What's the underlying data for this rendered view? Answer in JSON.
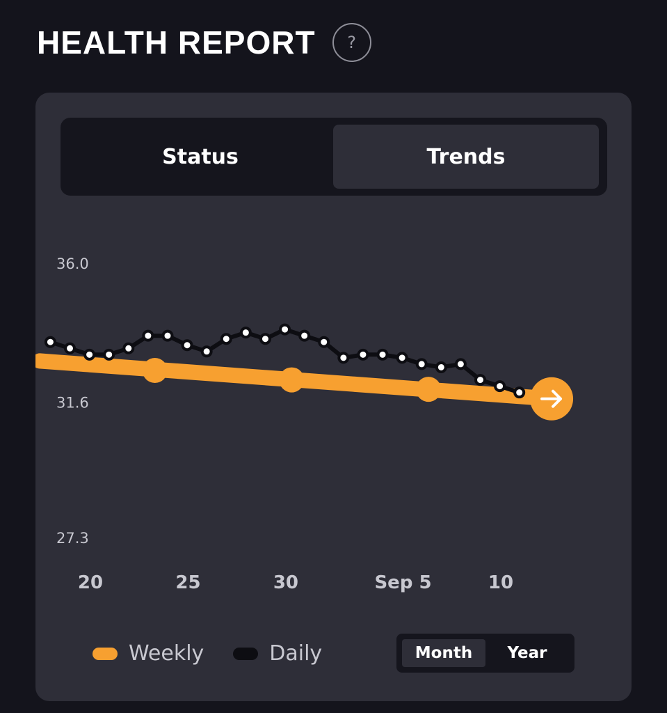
{
  "header": {
    "title": "HEALTH REPORT",
    "help_glyph": "?"
  },
  "tabs": {
    "status": "Status",
    "trends": "Trends",
    "active": "Trends"
  },
  "range": {
    "month": "Month",
    "year": "Year",
    "active": "Month"
  },
  "legend": {
    "weekly": "Weekly",
    "daily": "Daily"
  },
  "colors": {
    "weekly": "#f7a030",
    "daily": "#0d0d12",
    "point_fill": "#ffffff",
    "accent": "#f7a030"
  },
  "chart_data": {
    "type": "line",
    "ylim": [
      27.3,
      36.0
    ],
    "yticks": [
      "36.0",
      "31.6",
      "27.3"
    ],
    "xticks": [
      {
        "label": "20",
        "day": 20
      },
      {
        "label": "25",
        "day": 25
      },
      {
        "label": "30",
        "day": 30
      },
      {
        "label": "Sep 5",
        "day": 36
      },
      {
        "label": "10",
        "day": 41
      }
    ],
    "grid": false,
    "legend_position": "bottom-left",
    "series": [
      {
        "name": "Daily",
        "x": [
          17.95,
          18.95,
          19.95,
          20.95,
          21.95,
          22.95,
          23.95,
          24.95,
          25.95,
          26.95,
          27.95,
          28.95,
          29.95,
          30.95,
          31.95,
          32.95,
          33.95,
          34.95,
          35.95,
          36.95,
          37.95,
          38.95,
          39.95,
          40.95,
          41.95
        ],
        "y": [
          33.5,
          33.3,
          33.1,
          33.1,
          33.3,
          33.7,
          33.7,
          33.4,
          33.2,
          33.6,
          33.8,
          33.6,
          33.9,
          33.7,
          33.5,
          33.0,
          33.1,
          33.1,
          33.0,
          32.8,
          32.7,
          32.8,
          32.3,
          32.1,
          31.9
        ]
      },
      {
        "name": "Weekly",
        "x": [
          23.3,
          30.3,
          37.3
        ],
        "y": [
          32.6,
          32.3,
          32.0
        ],
        "trend_start": {
          "x": 17.4,
          "y": 32.9
        },
        "trend_end": {
          "x": 43.6,
          "y": 31.7
        }
      }
    ]
  }
}
